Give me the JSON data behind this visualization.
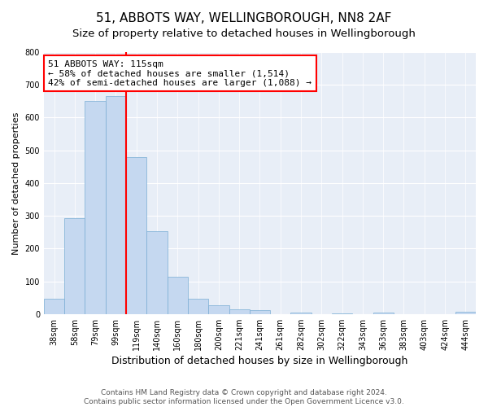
{
  "title": "51, ABBOTS WAY, WELLINGBOROUGH, NN8 2AF",
  "subtitle": "Size of property relative to detached houses in Wellingborough",
  "xlabel": "Distribution of detached houses by size in Wellingborough",
  "ylabel": "Number of detached properties",
  "categories": [
    "38sqm",
    "58sqm",
    "79sqm",
    "99sqm",
    "119sqm",
    "140sqm",
    "160sqm",
    "180sqm",
    "200sqm",
    "221sqm",
    "241sqm",
    "261sqm",
    "282sqm",
    "302sqm",
    "322sqm",
    "343sqm",
    "363sqm",
    "383sqm",
    "403sqm",
    "424sqm",
    "444sqm"
  ],
  "values": [
    47,
    293,
    651,
    666,
    480,
    254,
    115,
    48,
    28,
    14,
    12,
    0,
    4,
    0,
    2,
    0,
    5,
    0,
    0,
    0,
    6
  ],
  "bar_color": "#c5d8f0",
  "bar_edge_color": "#7aadd4",
  "vline_color": "red",
  "vline_index": 4,
  "annotation_box_text": "51 ABBOTS WAY: 115sqm\n← 58% of detached houses are smaller (1,514)\n42% of semi-detached houses are larger (1,088) →",
  "annotation_box_edge_color": "red",
  "annotation_box_facecolor": "white",
  "ylim": [
    0,
    800
  ],
  "yticks": [
    0,
    100,
    200,
    300,
    400,
    500,
    600,
    700,
    800
  ],
  "fig_facecolor": "#ffffff",
  "plot_facecolor": "#e8eef7",
  "footer_text": "Contains HM Land Registry data © Crown copyright and database right 2024.\nContains public sector information licensed under the Open Government Licence v3.0.",
  "title_fontsize": 11,
  "subtitle_fontsize": 9.5,
  "xlabel_fontsize": 9,
  "ylabel_fontsize": 8,
  "tick_fontsize": 7,
  "annotation_fontsize": 8,
  "footer_fontsize": 6.5
}
